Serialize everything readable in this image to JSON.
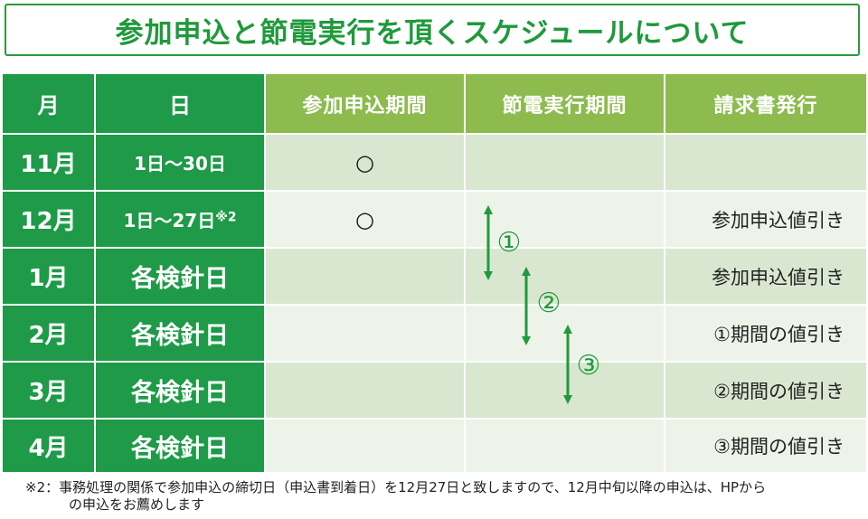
{
  "title": "参加申込と節電実行を頂くスケジュールについて",
  "headers": {
    "month": "月",
    "day": "日",
    "apply": "参加申込期間",
    "save": "節電実行期間",
    "bill": "請求書発行"
  },
  "rows": [
    {
      "month": "11月",
      "day_a": "1",
      "day_b": "日～",
      "day_c": "30",
      "day_d": "日",
      "day_note": "",
      "apply": "○",
      "bill": ""
    },
    {
      "month": "12月",
      "day_a": "1",
      "day_b": "日～",
      "day_c": "27",
      "day_d": "日",
      "day_note": "※2",
      "apply": "○",
      "bill": "参加申込値引き"
    },
    {
      "month": "1月",
      "day_text": "各検針日",
      "apply": "",
      "bill": "参加申込値引き"
    },
    {
      "month": "2月",
      "day_text": "各検針日",
      "apply": "",
      "bill": "①期間の値引き"
    },
    {
      "month": "3月",
      "day_text": "各検針日",
      "apply": "",
      "bill": "②期間の値引き"
    },
    {
      "month": "4月",
      "day_text": "各検針日",
      "apply": "",
      "bill": "③期間の値引き"
    }
  ],
  "periods": [
    {
      "label": "①",
      "from_month": "12月",
      "to_month": "1月"
    },
    {
      "label": "②",
      "from_month": "1月",
      "to_month": "2月"
    },
    {
      "label": "③",
      "from_month": "2月",
      "to_month": "3月"
    }
  ],
  "footnote": {
    "line1": "※2：事務処理の関係で参加申込の締切日（申込書到着日）を12月27日と致しますので、12月中旬以降の申込は、HPから",
    "line2": "の申込をお薦めします"
  },
  "colors": {
    "dark_green": "#1e9a48",
    "light_green_header": "#8dbb4e",
    "body_shade": "#d9e7d1",
    "body_alt": "#edf3e9",
    "arrow_green": "#1f9a3c"
  }
}
